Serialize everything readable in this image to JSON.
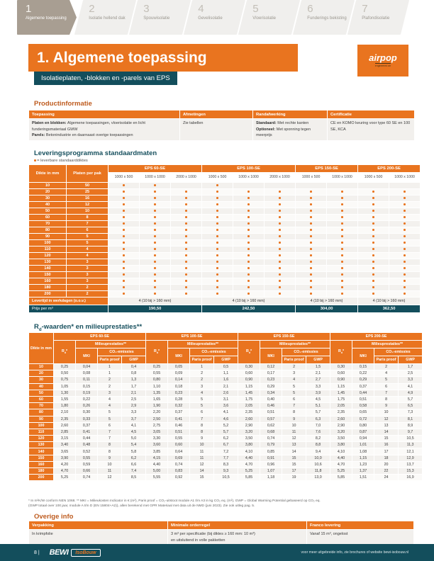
{
  "tabs": [
    {
      "num": "1",
      "label": "Algemene toepassing",
      "active": true
    },
    {
      "num": "2",
      "label": "Isolatie hellend dak",
      "active": false
    },
    {
      "num": "3",
      "label": "Spouwisolatie",
      "active": false
    },
    {
      "num": "4",
      "label": "Gevelisolatie",
      "active": false
    },
    {
      "num": "5",
      "label": "Vloerisolatie",
      "active": false
    },
    {
      "num": "6",
      "label": "Funderings bekisting",
      "active": false
    },
    {
      "num": "7",
      "label": "Plafondisolatie",
      "active": false
    }
  ],
  "header": {
    "title": "1. Algemene toepassing",
    "subtitle": "Isolatieplaten, -blokken en -parels van EPS",
    "logo_text": "airpop",
    "logo_tagline": "engineered air"
  },
  "product_info": {
    "heading": "Productinformatie",
    "headers": [
      "Toepassing",
      "Afmetingen",
      "Randafwerking",
      "Certificatie"
    ],
    "toepassing": [
      {
        "b": "Platen en blokken:",
        "t": "Algemene toepassingen, vloerisolatie en licht funderingsmateriaal GWW"
      },
      {
        "b": "Parels:",
        "t": "Betonindustrie en daarnaast overige toepassingen"
      }
    ],
    "afmetingen": "Zie tabellen",
    "randafwerking": [
      {
        "b": "Standaard:",
        "t": "Met rechte kanten"
      },
      {
        "b": "Optioneel:",
        "t": "Met sponning tegen meerprijs"
      }
    ],
    "certificatie": "CE en KOMO keuring voor type 60 SE en 100 SE, KCA"
  },
  "delivery": {
    "heading": "Leveringsprogramma standaardmaten",
    "legend": "= leverbare standaarddiktes",
    "dikte_header": "Dikte in mm",
    "pak_header": "Platen per pak",
    "groups": [
      {
        "name": "EPS 60-SE",
        "sizes": [
          "1000 x 500",
          "1000 x 1000",
          "2000 x 1000"
        ]
      },
      {
        "name": "EPS 100-SE",
        "sizes": [
          "1000 x 500",
          "1000 x 1000",
          "2000 x 1000"
        ]
      },
      {
        "name": "EPS 150-SE",
        "sizes": [
          "1000 x 500",
          "1000 x 1000"
        ]
      },
      {
        "name": "EPS 200-SE",
        "sizes": [
          "1000 x 500",
          "1000 x 1000"
        ]
      }
    ],
    "rows": [
      {
        "dikte": "10",
        "pak": "50",
        "dots": [
          1,
          1,
          0,
          1,
          0,
          0,
          0,
          0,
          0,
          0
        ]
      },
      {
        "dikte": "20",
        "pak": "25",
        "dots": [
          1,
          1,
          1,
          1,
          1,
          1,
          1,
          1,
          1,
          1
        ]
      },
      {
        "dikte": "30",
        "pak": "16",
        "dots": [
          1,
          1,
          1,
          1,
          1,
          1,
          1,
          1,
          1,
          1
        ]
      },
      {
        "dikte": "40",
        "pak": "12",
        "dots": [
          1,
          1,
          1,
          1,
          1,
          1,
          1,
          1,
          1,
          1
        ]
      },
      {
        "dikte": "50",
        "pak": "10",
        "dots": [
          1,
          1,
          1,
          1,
          1,
          1,
          1,
          1,
          1,
          1
        ]
      },
      {
        "dikte": "60",
        "pak": "8",
        "dots": [
          1,
          1,
          1,
          1,
          1,
          1,
          1,
          1,
          1,
          1
        ]
      },
      {
        "dikte": "70",
        "pak": "7",
        "dots": [
          1,
          1,
          1,
          1,
          1,
          1,
          1,
          1,
          1,
          1
        ]
      },
      {
        "dikte": "80",
        "pak": "6",
        "dots": [
          1,
          1,
          1,
          1,
          1,
          1,
          1,
          1,
          1,
          1
        ]
      },
      {
        "dikte": "90",
        "pak": "5",
        "dots": [
          1,
          1,
          1,
          1,
          1,
          1,
          1,
          1,
          1,
          1
        ]
      },
      {
        "dikte": "100",
        "pak": "5",
        "dots": [
          1,
          1,
          1,
          1,
          1,
          1,
          1,
          1,
          1,
          1
        ]
      },
      {
        "dikte": "110",
        "pak": "4",
        "dots": [
          1,
          1,
          1,
          1,
          1,
          1,
          1,
          1,
          1,
          1
        ]
      },
      {
        "dikte": "120",
        "pak": "4",
        "dots": [
          1,
          1,
          1,
          1,
          1,
          1,
          1,
          1,
          1,
          1
        ]
      },
      {
        "dikte": "130",
        "pak": "3",
        "dots": [
          1,
          1,
          1,
          1,
          1,
          1,
          1,
          1,
          1,
          1
        ]
      },
      {
        "dikte": "140",
        "pak": "3",
        "dots": [
          1,
          1,
          1,
          1,
          1,
          1,
          1,
          1,
          1,
          1
        ]
      },
      {
        "dikte": "150",
        "pak": "3",
        "dots": [
          1,
          1,
          1,
          1,
          1,
          1,
          1,
          1,
          1,
          1
        ]
      },
      {
        "dikte": "160",
        "pak": "3",
        "dots": [
          1,
          1,
          1,
          1,
          1,
          1,
          1,
          1,
          1,
          1
        ]
      },
      {
        "dikte": "180",
        "pak": "2",
        "dots": [
          1,
          1,
          1,
          1,
          1,
          1,
          1,
          1,
          1,
          1
        ]
      },
      {
        "dikte": "200",
        "pak": "2",
        "dots": [
          1,
          1,
          1,
          1,
          1,
          1,
          1,
          1,
          1,
          1
        ]
      }
    ],
    "levertijd_label": "Levertijd in werkdagen (o.o.v.)",
    "levertijd_value": "4 (10 bij > 160 mm)",
    "prijs_label": "Prijs per m³",
    "prijzen": [
      "190,50",
      "242,50",
      "304,00",
      "362,50"
    ]
  },
  "rd": {
    "heading_prefix": "R",
    "heading_sub": "d",
    "heading_rest": "-waarden* en milieuprestaties**",
    "dikte_header": "Dikte in mm",
    "groups": [
      "EPS 60-SE",
      "EPS 100-SE",
      "EPS 150-SE",
      "EPS 200-SE"
    ],
    "rd_label_prefix": "R",
    "rd_label_sub": "d",
    "rd_label_suffix": "*",
    "milieu_label": "Milieuprestaties**",
    "mki_label": "MKI",
    "co2_label": "CO₂-emissies",
    "paris_label": "Paris proof",
    "gwp_label": "GWP",
    "rows": [
      {
        "d": "10",
        "v": [
          "0,25",
          "0,04",
          "1",
          "0,4",
          "0,25",
          "0,05",
          "1",
          "0,5",
          "0,30",
          "0,12",
          "2",
          "1,5",
          "0,30",
          "0,15",
          "2",
          "1,7"
        ]
      },
      {
        "d": "20",
        "v": [
          "0,50",
          "0,08",
          "1",
          "0,8",
          "0,55",
          "0,09",
          "2",
          "1,1",
          "0,60",
          "0,17",
          "3",
          "2,1",
          "0,60",
          "0,22",
          "4",
          "2,5"
        ]
      },
      {
        "d": "30",
        "v": [
          "0,75",
          "0,11",
          "2",
          "1,3",
          "0,80",
          "0,14",
          "2",
          "1,6",
          "0,90",
          "0,23",
          "4",
          "2,7",
          "0,90",
          "0,29",
          "5",
          "3,3"
        ]
      },
      {
        "d": "40",
        "v": [
          "1,05",
          "0,15",
          "2",
          "1,7",
          "1,10",
          "0,18",
          "3",
          "2,1",
          "1,15",
          "0,29",
          "5",
          "3,3",
          "1,15",
          "0,37",
          "6",
          "4,1"
        ]
      },
      {
        "d": "50",
        "v": [
          "1,30",
          "0,19",
          "3",
          "2,1",
          "1,35",
          "0,23",
          "4",
          "2,6",
          "1,45",
          "0,34",
          "5",
          "3,9",
          "1,45",
          "0,44",
          "7",
          "4,9"
        ]
      },
      {
        "d": "60",
        "v": [
          "1,55",
          "0,22",
          "4",
          "2,5",
          "1,65",
          "0,28",
          "5",
          "3,1",
          "1,75",
          "0,40",
          "6",
          "4,5",
          "1,75",
          "0,51",
          "8",
          "5,7"
        ]
      },
      {
        "d": "70",
        "v": [
          "1,80",
          "0,26",
          "4",
          "2,9",
          "1,90",
          "0,32",
          "5",
          "3,6",
          "2,05",
          "0,46",
          "7",
          "5,1",
          "2,05",
          "0,58",
          "9",
          "6,5"
        ]
      },
      {
        "d": "80",
        "v": [
          "2,10",
          "0,30",
          "5",
          "3,3",
          "2,20",
          "0,37",
          "6",
          "4,1",
          "2,35",
          "0,51",
          "8",
          "5,7",
          "2,35",
          "0,65",
          "10",
          "7,3"
        ]
      },
      {
        "d": "90",
        "v": [
          "2,35",
          "0,33",
          "5",
          "3,7",
          "2,50",
          "0,41",
          "7",
          "4,6",
          "2,60",
          "0,57",
          "9",
          "6,3",
          "2,60",
          "0,72",
          "12",
          "8,1"
        ]
      },
      {
        "d": "100",
        "v": [
          "2,60",
          "0,37",
          "6",
          "4,1",
          "2,75",
          "0,46",
          "8",
          "5,2",
          "2,90",
          "0,62",
          "10",
          "7,0",
          "2,90",
          "0,80",
          "13",
          "8,9"
        ]
      },
      {
        "d": "110",
        "v": [
          "2,85",
          "0,41",
          "7",
          "4,5",
          "3,05",
          "0,51",
          "8",
          "5,7",
          "3,20",
          "0,68",
          "11",
          "7,6",
          "3,20",
          "0,87",
          "14",
          "9,7"
        ]
      },
      {
        "d": "120",
        "v": [
          "3,15",
          "0,44",
          "7",
          "5,0",
          "3,30",
          "0,55",
          "9",
          "6,2",
          "3,50",
          "0,74",
          "12",
          "8,2",
          "3,50",
          "0,94",
          "15",
          "10,5"
        ]
      },
      {
        "d": "130",
        "v": [
          "3,40",
          "0,48",
          "8",
          "5,4",
          "3,60",
          "0,60",
          "10",
          "6,7",
          "3,80",
          "0,79",
          "13",
          "8,8",
          "3,80",
          "1,01",
          "16",
          "11,3"
        ]
      },
      {
        "d": "140",
        "v": [
          "3,65",
          "0,52",
          "8",
          "5,8",
          "3,85",
          "0,64",
          "11",
          "7,2",
          "4,10",
          "0,85",
          "14",
          "9,4",
          "4,10",
          "1,08",
          "17",
          "12,1"
        ]
      },
      {
        "d": "150",
        "v": [
          "3,90",
          "0,55",
          "9",
          "6,2",
          "4,15",
          "0,69",
          "11",
          "7,7",
          "4,40",
          "0,91",
          "15",
          "10,0",
          "4,40",
          "1,15",
          "18",
          "12,9"
        ]
      },
      {
        "d": "160",
        "v": [
          "4,20",
          "0,59",
          "10",
          "6,6",
          "4,40",
          "0,74",
          "12",
          "8,3",
          "4,70",
          "0,96",
          "15",
          "10,6",
          "4,70",
          "1,23",
          "20",
          "13,7"
        ]
      },
      {
        "d": "180",
        "v": [
          "4,70",
          "0,66",
          "11",
          "7,4",
          "5,00",
          "0,83",
          "14",
          "9,3",
          "5,25",
          "1,07",
          "17",
          "11,8",
          "5,25",
          "1,37",
          "22",
          "15,3"
        ]
      },
      {
        "d": "200",
        "v": [
          "5,25",
          "0,74",
          "12",
          "8,5",
          "5,55",
          "0,92",
          "15",
          "10,5",
          "5,85",
          "1,18",
          "19",
          "13,0",
          "5,85",
          "1,51",
          "24",
          "16,9"
        ]
      }
    ],
    "footnote1": "* In m²K/W conform NEN 1068. ** MKI = Milieukosten Indicator in € (m²), Paris proof = CO₂-uitstoot module A1 t/m A3 in kg CO₂ eq. (m²), GWP = Global Warming Potential gebaseerd op CO₂ eq.",
    "footnote2": "(GWP totaal over 100 jaar, module A t/m D (EN 15804+A2)), allen berekend met GPR Materiaal met data uit de NMD (juni 2023). Zie ook uitleg pag. 5."
  },
  "overige": {
    "heading": "Overige info",
    "headers": [
      "Verpakking",
      "Minimale orderregel",
      "Franco levering"
    ],
    "verpakking": "In krimpfolie",
    "minimale_1": "3 m³ per specificatie (bij diktes ≥ 160 mm: 10 m³)",
    "minimale_2": "en uitsluitend in volle pakketten",
    "franco": "Vanaf 15 m³, ongelost"
  },
  "footer": {
    "page": "8 |",
    "brand": "BEWI",
    "brand_sub": "IsoBouw",
    "right": "voor meer uitgebreide info, zie brochures of website bewi-isobouw.nl"
  },
  "colors": {
    "orange": "#E9741F",
    "teal": "#134E5C",
    "tab_active": "#A89E92"
  }
}
